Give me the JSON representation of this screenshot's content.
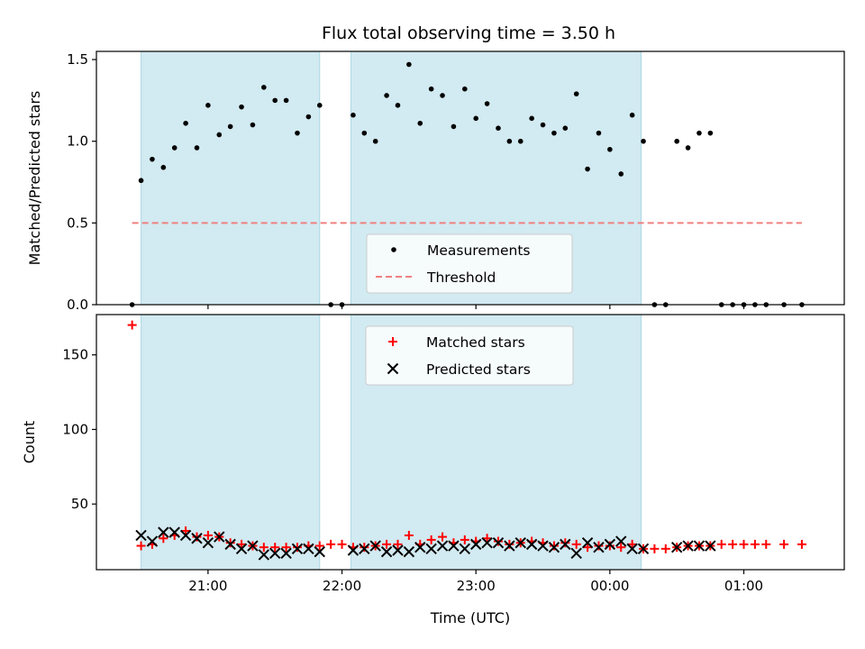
{
  "chart_data": [
    {
      "type": "scatter",
      "panel": "top",
      "title": "Flux total observing time = 3.50 h",
      "ylabel": "Matched/Predicted stars",
      "xlabel": "",
      "xlim": [
        "20:10",
        "01:45"
      ],
      "ylim": [
        0,
        1.55
      ],
      "y_ticks": [
        "0.0",
        "0.5",
        "1.0",
        "1.5"
      ],
      "x_ticks": [
        "21:00",
        "22:00",
        "23:00",
        "00:00",
        "01:00"
      ],
      "shaded_intervals": [
        [
          "20:30",
          "21:50"
        ],
        [
          "22:04",
          "00:14"
        ]
      ],
      "shade_color": "#add8e6",
      "legend": {
        "position": "lower-center",
        "entries": [
          "Measurements",
          "Threshold"
        ]
      },
      "series": [
        {
          "name": "Measurements",
          "marker": "dot",
          "color": "#000000",
          "points": [
            [
              "20:26",
              0.0
            ],
            [
              "20:30",
              0.76
            ],
            [
              "20:35",
              0.89
            ],
            [
              "20:40",
              0.84
            ],
            [
              "20:45",
              0.96
            ],
            [
              "20:50",
              1.11
            ],
            [
              "20:55",
              0.96
            ],
            [
              "21:00",
              1.22
            ],
            [
              "21:05",
              1.04
            ],
            [
              "21:10",
              1.09
            ],
            [
              "21:15",
              1.21
            ],
            [
              "21:20",
              1.1
            ],
            [
              "21:25",
              1.33
            ],
            [
              "21:30",
              1.25
            ],
            [
              "21:35",
              1.25
            ],
            [
              "21:40",
              1.05
            ],
            [
              "21:45",
              1.15
            ],
            [
              "21:50",
              1.22
            ],
            [
              "21:55",
              0.0
            ],
            [
              "22:00",
              0.0
            ],
            [
              "22:05",
              1.16
            ],
            [
              "22:10",
              1.05
            ],
            [
              "22:15",
              1.0
            ],
            [
              "22:20",
              1.28
            ],
            [
              "22:25",
              1.22
            ],
            [
              "22:30",
              1.47
            ],
            [
              "22:35",
              1.11
            ],
            [
              "22:40",
              1.32
            ],
            [
              "22:45",
              1.28
            ],
            [
              "22:50",
              1.09
            ],
            [
              "22:55",
              1.32
            ],
            [
              "23:00",
              1.14
            ],
            [
              "23:05",
              1.23
            ],
            [
              "23:10",
              1.08
            ],
            [
              "23:15",
              1.0
            ],
            [
              "23:20",
              1.0
            ],
            [
              "23:25",
              1.14
            ],
            [
              "23:30",
              1.1
            ],
            [
              "23:35",
              1.05
            ],
            [
              "23:40",
              1.08
            ],
            [
              "23:45",
              1.29
            ],
            [
              "23:50",
              0.83
            ],
            [
              "23:55",
              1.05
            ],
            [
              "00:00",
              0.95
            ],
            [
              "00:05",
              0.8
            ],
            [
              "00:10",
              1.16
            ],
            [
              "00:15",
              1.0
            ],
            [
              "00:20",
              0.0
            ],
            [
              "00:25",
              0.0
            ],
            [
              "00:30",
              1.0
            ],
            [
              "00:35",
              0.96
            ],
            [
              "00:40",
              1.05
            ],
            [
              "00:45",
              1.05
            ],
            [
              "00:50",
              0.0
            ],
            [
              "00:55",
              0.0
            ],
            [
              "01:00",
              0.0
            ],
            [
              "01:05",
              0.0
            ],
            [
              "01:10",
              0.0
            ],
            [
              "01:18",
              0.0
            ],
            [
              "01:26",
              0.0
            ]
          ]
        },
        {
          "name": "Threshold",
          "marker": "dashed-line",
          "color": "#f08080",
          "points": [
            [
              "20:26",
              0.5
            ],
            [
              "01:26",
              0.5
            ]
          ]
        }
      ]
    },
    {
      "type": "scatter",
      "panel": "bottom",
      "title": "",
      "ylabel": "Count",
      "xlabel": "Time (UTC)",
      "xlim": [
        "20:10",
        "01:45"
      ],
      "ylim": [
        6,
        177
      ],
      "y_ticks": [
        "50",
        "100",
        "150"
      ],
      "x_ticks": [
        "21:00",
        "22:00",
        "23:00",
        "00:00",
        "01:00"
      ],
      "shaded_intervals": [
        [
          "20:30",
          "21:50"
        ],
        [
          "22:04",
          "00:14"
        ]
      ],
      "shade_color": "#add8e6",
      "legend": {
        "position": "upper-center",
        "entries": [
          "Matched stars",
          "Predicted stars"
        ]
      },
      "series": [
        {
          "name": "Matched stars",
          "marker": "plus",
          "color": "#ff0000",
          "points": [
            [
              "20:26",
              170
            ],
            [
              "20:30",
              22
            ],
            [
              "20:35",
              23
            ],
            [
              "20:40",
              27
            ],
            [
              "20:45",
              29
            ],
            [
              "20:50",
              32
            ],
            [
              "20:55",
              28
            ],
            [
              "21:00",
              29
            ],
            [
              "21:05",
              28
            ],
            [
              "21:10",
              24
            ],
            [
              "21:15",
              23
            ],
            [
              "21:20",
              22
            ],
            [
              "21:25",
              21
            ],
            [
              "21:30",
              21
            ],
            [
              "21:35",
              21
            ],
            [
              "21:40",
              21
            ],
            [
              "21:45",
              22
            ],
            [
              "21:50",
              22
            ],
            [
              "21:55",
              23
            ],
            [
              "22:00",
              23
            ],
            [
              "22:05",
              21
            ],
            [
              "22:10",
              21
            ],
            [
              "22:15",
              22
            ],
            [
              "22:20",
              23
            ],
            [
              "22:25",
              23
            ],
            [
              "22:30",
              29
            ],
            [
              "22:35",
              23
            ],
            [
              "22:40",
              26
            ],
            [
              "22:45",
              28
            ],
            [
              "22:50",
              24
            ],
            [
              "22:55",
              26
            ],
            [
              "23:00",
              25
            ],
            [
              "23:05",
              27
            ],
            [
              "23:10",
              25
            ],
            [
              "23:15",
              23
            ],
            [
              "23:20",
              24
            ],
            [
              "23:25",
              25
            ],
            [
              "23:30",
              24
            ],
            [
              "23:35",
              22
            ],
            [
              "23:40",
              24
            ],
            [
              "23:45",
              23
            ],
            [
              "23:50",
              21
            ],
            [
              "23:55",
              22
            ],
            [
              "00:00",
              22
            ],
            [
              "00:05",
              21
            ],
            [
              "00:10",
              23
            ],
            [
              "00:15",
              20
            ],
            [
              "00:20",
              20
            ],
            [
              "00:25",
              20
            ],
            [
              "00:30",
              21
            ],
            [
              "00:35",
              22
            ],
            [
              "00:40",
              22
            ],
            [
              "00:45",
              22
            ],
            [
              "00:50",
              23
            ],
            [
              "00:55",
              23
            ],
            [
              "01:00",
              23
            ],
            [
              "01:05",
              23
            ],
            [
              "01:10",
              23
            ],
            [
              "01:18",
              23
            ],
            [
              "01:26",
              23
            ]
          ]
        },
        {
          "name": "Predicted stars",
          "marker": "x",
          "color": "#000000",
          "points": [
            [
              "20:30",
              29
            ],
            [
              "20:35",
              25
            ],
            [
              "20:40",
              31
            ],
            [
              "20:45",
              31
            ],
            [
              "20:50",
              29
            ],
            [
              "20:55",
              27
            ],
            [
              "21:00",
              24
            ],
            [
              "21:05",
              28
            ],
            [
              "21:10",
              23
            ],
            [
              "21:15",
              20
            ],
            [
              "21:20",
              22
            ],
            [
              "21:25",
              16
            ],
            [
              "21:30",
              17
            ],
            [
              "21:35",
              17
            ],
            [
              "21:40",
              20
            ],
            [
              "21:45",
              20
            ],
            [
              "21:50",
              18
            ],
            [
              "22:05",
              19
            ],
            [
              "22:10",
              20
            ],
            [
              "22:15",
              22
            ],
            [
              "22:20",
              18
            ],
            [
              "22:25",
              19
            ],
            [
              "22:30",
              18
            ],
            [
              "22:35",
              21
            ],
            [
              "22:40",
              20
            ],
            [
              "22:45",
              22
            ],
            [
              "22:50",
              22
            ],
            [
              "22:55",
              20
            ],
            [
              "23:00",
              23
            ],
            [
              "23:05",
              24
            ],
            [
              "23:10",
              24
            ],
            [
              "23:15",
              22
            ],
            [
              "23:20",
              24
            ],
            [
              "23:25",
              23
            ],
            [
              "23:30",
              22
            ],
            [
              "23:35",
              21
            ],
            [
              "23:40",
              23
            ],
            [
              "23:45",
              17
            ],
            [
              "23:50",
              24
            ],
            [
              "23:55",
              21
            ],
            [
              "00:00",
              23
            ],
            [
              "00:05",
              25
            ],
            [
              "00:10",
              20
            ],
            [
              "00:15",
              20
            ],
            [
              "00:30",
              21
            ],
            [
              "00:35",
              22
            ],
            [
              "00:40",
              22
            ],
            [
              "00:45",
              22
            ]
          ]
        }
      ]
    }
  ]
}
